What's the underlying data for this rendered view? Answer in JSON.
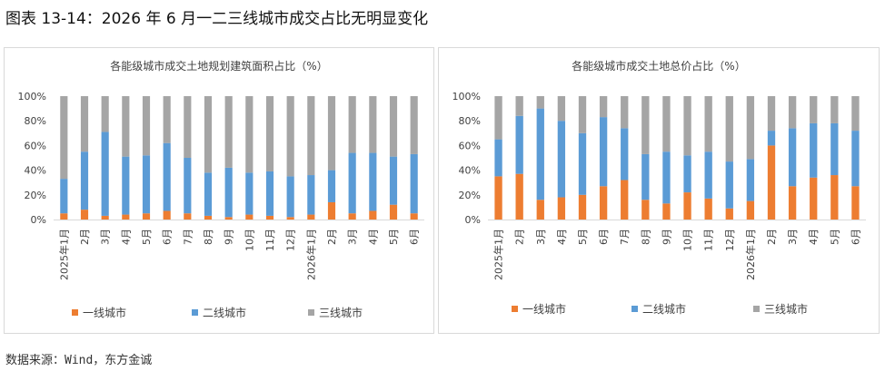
{
  "figure_title": "图表 13-14：2026 年 6 月一二三线城市成交占比无明显变化",
  "source": "数据来源：Wind，东方金诚",
  "chart_data": [
    {
      "type": "bar",
      "stacked": true,
      "title": "各能级城市成交土地规划建筑面积占比（%）",
      "categories": [
        "2025年1月",
        "2月",
        "3月",
        "4月",
        "5月",
        "6月",
        "7月",
        "8月",
        "9月",
        "10月",
        "11月",
        "12月",
        "2026年1月",
        "2月",
        "3月",
        "4月",
        "5月",
        "6月"
      ],
      "yticks": [
        "0%",
        "20%",
        "40%",
        "60%",
        "80%",
        "100%"
      ],
      "ylim": [
        0,
        100
      ],
      "legend_position": "bottom",
      "series": [
        {
          "name": "一线城市",
          "color": "#ed7d31",
          "values": [
            5,
            8,
            3,
            4,
            5,
            7,
            5,
            3,
            2,
            4,
            3,
            2,
            4,
            14,
            5,
            7,
            12,
            5
          ]
        },
        {
          "name": "二线城市",
          "color": "#5b9bd5",
          "values": [
            28,
            47,
            68,
            47,
            47,
            55,
            45,
            35,
            40,
            34,
            36,
            33,
            32,
            26,
            49,
            47,
            39,
            48
          ]
        },
        {
          "name": "三线城市",
          "color": "#a5a5a5",
          "values": [
            67,
            45,
            29,
            49,
            48,
            38,
            50,
            62,
            58,
            62,
            61,
            65,
            64,
            60,
            46,
            46,
            49,
            47
          ]
        }
      ]
    },
    {
      "type": "bar",
      "stacked": true,
      "title": "各能级城市成交土地总价占比（%）",
      "categories": [
        "2025年1月",
        "2月",
        "3月",
        "4月",
        "5月",
        "6月",
        "7月",
        "8月",
        "9月",
        "10月",
        "11月",
        "12月",
        "2026年1月",
        "2月",
        "3月",
        "4月",
        "5月",
        "6月"
      ],
      "yticks": [
        "0%",
        "20%",
        "40%",
        "60%",
        "80%",
        "100%"
      ],
      "ylim": [
        0,
        100
      ],
      "legend_position": "bottom",
      "series": [
        {
          "name": "一线城市",
          "color": "#ed7d31",
          "values": [
            35,
            37,
            16,
            18,
            20,
            27,
            32,
            16,
            13,
            22,
            17,
            9,
            15,
            60,
            27,
            34,
            36,
            27
          ]
        },
        {
          "name": "二线城市",
          "color": "#5b9bd5",
          "values": [
            30,
            47,
            74,
            62,
            50,
            56,
            42,
            37,
            42,
            30,
            38,
            38,
            34,
            12,
            47,
            44,
            42,
            45
          ]
        },
        {
          "name": "三线城市",
          "color": "#a5a5a5",
          "values": [
            35,
            16,
            10,
            20,
            30,
            17,
            26,
            47,
            45,
            48,
            45,
            53,
            51,
            28,
            26,
            22,
            22,
            28
          ]
        }
      ]
    }
  ]
}
